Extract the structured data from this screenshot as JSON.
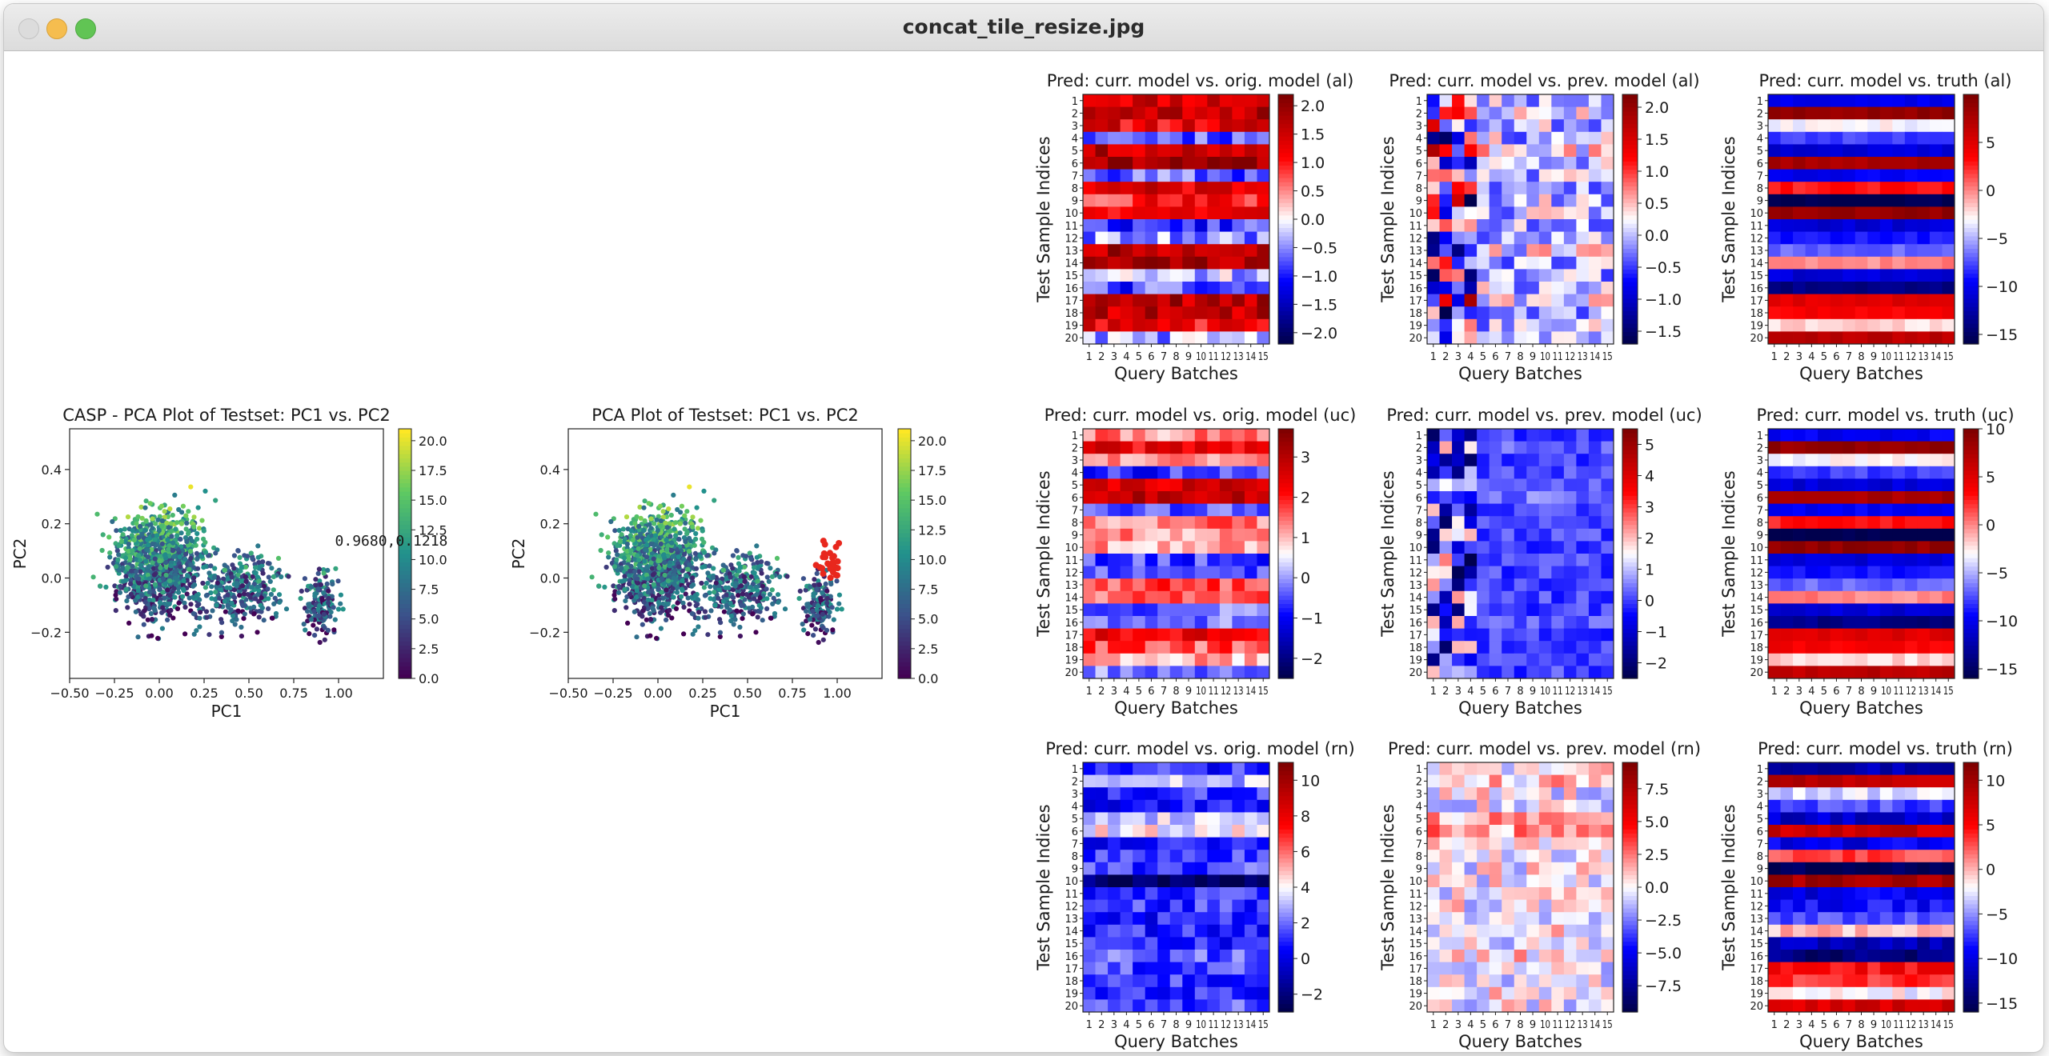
{
  "window": {
    "title": "concat_tile_resize.jpg"
  },
  "colors": {
    "window_bg": "#ffffff",
    "titlebar": "#e4e4e4",
    "close": "#dcdcdc",
    "minimize": "#f5bd4f",
    "maximize": "#61c454"
  },
  "chart_data": [
    {
      "type": "scatter",
      "title": "CASP - PCA Plot of Testset: PC1 vs. PC2",
      "xlabel": "PC1",
      "ylabel": "PC2",
      "xlim": [
        -0.5,
        1.25
      ],
      "ylim": [
        -0.37,
        0.55
      ],
      "xticks": [
        "−0.50",
        "−0.25",
        "0.00",
        "0.25",
        "0.50",
        "0.75",
        "1.00"
      ],
      "xtick_values": [
        -0.5,
        -0.25,
        0,
        0.25,
        0.5,
        0.75,
        1.0
      ],
      "yticks": [
        "−0.2",
        "0.0",
        "0.2",
        "0.4"
      ],
      "ytick_values": [
        -0.2,
        0,
        0.2,
        0.4
      ],
      "colorbar": {
        "cmap": "viridis",
        "vmin": 0,
        "vmax": 21,
        "ticks": [
          "0.0",
          "2.5",
          "5.0",
          "7.5",
          "10.0",
          "12.5",
          "15.0",
          "17.5",
          "20.0"
        ],
        "tick_values": [
          0,
          2.5,
          5,
          7.5,
          10,
          12.5,
          15,
          17.5,
          20
        ]
      },
      "annotation": "0.9680,0.1218",
      "highlight": false
    },
    {
      "type": "scatter",
      "title": "PCA Plot of Testset: PC1 vs. PC2",
      "xlabel": "PC1",
      "ylabel": "PC2",
      "xlim": [
        -0.5,
        1.25
      ],
      "ylim": [
        -0.37,
        0.55
      ],
      "xticks": [
        "−0.50",
        "−0.25",
        "0.00",
        "0.25",
        "0.50",
        "0.75",
        "1.00"
      ],
      "xtick_values": [
        -0.5,
        -0.25,
        0,
        0.25,
        0.5,
        0.75,
        1.0
      ],
      "yticks": [
        "−0.2",
        "0.0",
        "0.2",
        "0.4"
      ],
      "ytick_values": [
        -0.2,
        0,
        0.2,
        0.4
      ],
      "colorbar": {
        "cmap": "viridis",
        "vmin": 0,
        "vmax": 21,
        "ticks": [
          "0.0",
          "2.5",
          "5.0",
          "7.5",
          "10.0",
          "12.5",
          "15.0",
          "17.5",
          "20.0"
        ],
        "tick_values": [
          0,
          2.5,
          5,
          7.5,
          10,
          12.5,
          15,
          17.5,
          20
        ]
      },
      "highlight": true,
      "highlight_color": "#e8271d"
    },
    {
      "type": "heatmap",
      "title": "Pred: curr. model vs. orig. model (al)",
      "xlabel": "Query Batches",
      "ylabel": "Test Sample Indices",
      "rows": 20,
      "cols": 15,
      "row_labels": [
        "1",
        "2",
        "3",
        "4",
        "5",
        "6",
        "7",
        "8",
        "9",
        "10",
        "11",
        "12",
        "13",
        "14",
        "15",
        "16",
        "17",
        "18",
        "19",
        "20"
      ],
      "col_labels": [
        "1",
        "2",
        "3",
        "4",
        "5",
        "6",
        "7",
        "8",
        "9",
        "10",
        "11",
        "12",
        "13",
        "14",
        "15"
      ],
      "vmin": -2.2,
      "vmax": 2.2,
      "cb_ticks": [
        "2.0",
        "1.5",
        "1.0",
        "0.5",
        "0.0",
        "−0.5",
        "−1.0",
        "−1.5",
        "−2.0"
      ],
      "cb_tick_values": [
        2,
        1.5,
        1,
        0.5,
        0,
        -0.5,
        -1,
        -1.5,
        -2
      ],
      "row_means": [
        1.5,
        1.7,
        1.3,
        -0.6,
        1.6,
        2.0,
        -0.7,
        1.4,
        1.0,
        1.3,
        -0.9,
        -0.5,
        1.8,
        1.9,
        -0.3,
        -0.8,
        1.7,
        1.6,
        1.2,
        -0.4
      ],
      "noise": 0.5,
      "seed": 11
    },
    {
      "type": "heatmap",
      "title": "Pred: curr. model vs. prev. model (al)",
      "xlabel": "Query Batches",
      "ylabel": "Test Sample Indices",
      "rows": 20,
      "cols": 15,
      "row_labels": [
        "1",
        "2",
        "3",
        "4",
        "5",
        "6",
        "7",
        "8",
        "9",
        "10",
        "11",
        "12",
        "13",
        "14",
        "15",
        "16",
        "17",
        "18",
        "19",
        "20"
      ],
      "col_labels": [
        "1",
        "2",
        "3",
        "4",
        "5",
        "6",
        "7",
        "8",
        "9",
        "10",
        "11",
        "12",
        "13",
        "14",
        "15"
      ],
      "vmin": -1.7,
      "vmax": 2.2,
      "cb_ticks": [
        "2.0",
        "1.5",
        "1.0",
        "0.5",
        "0.0",
        "−0.5",
        "−1.0",
        "−1.5"
      ],
      "cb_tick_values": [
        2,
        1.5,
        1,
        0.5,
        0,
        -0.5,
        -1,
        -1.5
      ],
      "row_means": [
        0,
        0.2,
        0,
        0,
        0.3,
        0.1,
        0,
        0,
        0,
        0,
        0,
        0,
        0.2,
        0,
        0,
        0,
        0.2,
        0,
        0,
        0
      ],
      "noise": 0.55,
      "seed": 23,
      "early_boost": 1.5
    },
    {
      "type": "heatmap",
      "title": "Pred: curr. model vs. truth (al)",
      "xlabel": "Query Batches",
      "ylabel": "Test Sample Indices",
      "rows": 20,
      "cols": 15,
      "row_labels": [
        "1",
        "2",
        "3",
        "4",
        "5",
        "6",
        "7",
        "8",
        "9",
        "10",
        "11",
        "12",
        "13",
        "14",
        "15",
        "16",
        "17",
        "18",
        "19",
        "20"
      ],
      "col_labels": [
        "1",
        "2",
        "3",
        "4",
        "5",
        "6",
        "7",
        "8",
        "9",
        "10",
        "11",
        "12",
        "13",
        "14",
        "15"
      ],
      "vmin": -16,
      "vmax": 10,
      "cb_ticks": [
        "5",
        "0",
        "−5",
        "−10",
        "−15"
      ],
      "cb_tick_values": [
        5,
        0,
        -5,
        -10,
        -15
      ],
      "row_means": [
        -10,
        9,
        -3,
        -8,
        -11,
        8,
        -10,
        3,
        -16,
        9,
        -11,
        -9,
        -7,
        0,
        -11,
        -14,
        5,
        4,
        -2,
        7
      ],
      "noise": 0.8,
      "seed": 37
    },
    {
      "type": "heatmap",
      "title": "Pred: curr. model vs. orig. model (uc)",
      "xlabel": "Query Batches",
      "ylabel": "Test Sample Indices",
      "rows": 20,
      "cols": 15,
      "row_labels": [
        "1",
        "2",
        "3",
        "4",
        "5",
        "6",
        "7",
        "8",
        "9",
        "10",
        "11",
        "12",
        "13",
        "14",
        "15",
        "16",
        "17",
        "18",
        "19",
        "20"
      ],
      "col_labels": [
        "1",
        "2",
        "3",
        "4",
        "5",
        "6",
        "7",
        "8",
        "9",
        "10",
        "11",
        "12",
        "13",
        "14",
        "15"
      ],
      "vmin": -2.5,
      "vmax": 3.7,
      "cb_ticks": [
        "3",
        "2",
        "1",
        "0",
        "−1",
        "−2"
      ],
      "cb_tick_values": [
        3,
        2,
        1,
        0,
        -1,
        -2
      ],
      "row_means": [
        1.3,
        2.4,
        1.2,
        -0.7,
        2.6,
        3.0,
        -0.5,
        1.4,
        1.3,
        1.1,
        -0.6,
        -0.4,
        1.7,
        1.6,
        -0.3,
        -0.2,
        2.4,
        1.6,
        1.1,
        -0.2
      ],
      "noise": 0.55,
      "seed": 41
    },
    {
      "type": "heatmap",
      "title": "Pred: curr. model vs. prev. model (uc)",
      "xlabel": "Query Batches",
      "ylabel": "Test Sample Indices",
      "rows": 20,
      "cols": 15,
      "row_labels": [
        "1",
        "2",
        "3",
        "4",
        "5",
        "6",
        "7",
        "8",
        "9",
        "10",
        "11",
        "12",
        "13",
        "14",
        "15",
        "16",
        "17",
        "18",
        "19",
        "20"
      ],
      "col_labels": [
        "1",
        "2",
        "3",
        "4",
        "5",
        "6",
        "7",
        "8",
        "9",
        "10",
        "11",
        "12",
        "13",
        "14",
        "15"
      ],
      "vmin": -2.5,
      "vmax": 5.5,
      "cb_ticks": [
        "5",
        "4",
        "3",
        "2",
        "1",
        "0",
        "−1",
        "−2"
      ],
      "cb_tick_values": [
        5,
        4,
        3,
        2,
        1,
        0,
        -1,
        -2
      ],
      "row_means": [
        0,
        0.3,
        0,
        0,
        0.2,
        0.4,
        0,
        0,
        0,
        0,
        0,
        0,
        0,
        0,
        0,
        0.3,
        0,
        0,
        0,
        0
      ],
      "noise": 0.45,
      "seed": 53,
      "early_boost": 2.4
    },
    {
      "type": "heatmap",
      "title": "Pred: curr. model vs. truth (uc)",
      "xlabel": "Query Batches",
      "ylabel": "Test Sample Indices",
      "rows": 20,
      "cols": 15,
      "row_labels": [
        "1",
        "2",
        "3",
        "4",
        "5",
        "6",
        "7",
        "8",
        "9",
        "10",
        "11",
        "12",
        "13",
        "14",
        "15",
        "16",
        "17",
        "18",
        "19",
        "20"
      ],
      "col_labels": [
        "1",
        "2",
        "3",
        "4",
        "5",
        "6",
        "7",
        "8",
        "9",
        "10",
        "11",
        "12",
        "13",
        "14",
        "15"
      ],
      "vmin": -16,
      "vmax": 10,
      "cb_ticks": [
        "10",
        "5",
        "0",
        "−5",
        "−10",
        "−15"
      ],
      "cb_tick_values": [
        10,
        5,
        0,
        -5,
        -10,
        -15
      ],
      "row_means": [
        -10,
        9,
        -3,
        -8,
        -11,
        8,
        -10,
        3,
        -16,
        9,
        -11,
        -9,
        -7,
        0,
        -11,
        -14,
        5,
        4,
        -2,
        7
      ],
      "noise": 0.9,
      "seed": 61
    },
    {
      "type": "heatmap",
      "title": "Pred: curr. model vs. orig. model (rn)",
      "xlabel": "Query Batches",
      "ylabel": "Test Sample Indices",
      "rows": 20,
      "cols": 15,
      "row_labels": [
        "1",
        "2",
        "3",
        "4",
        "5",
        "6",
        "7",
        "8",
        "9",
        "10",
        "11",
        "12",
        "13",
        "14",
        "15",
        "16",
        "17",
        "18",
        "19",
        "20"
      ],
      "col_labels": [
        "1",
        "2",
        "3",
        "4",
        "5",
        "6",
        "7",
        "8",
        "9",
        "10",
        "11",
        "12",
        "13",
        "14",
        "15"
      ],
      "vmin": -3,
      "vmax": 11,
      "cb_ticks": [
        "10",
        "8",
        "6",
        "4",
        "2",
        "0",
        "−2"
      ],
      "cb_tick_values": [
        10,
        8,
        6,
        4,
        2,
        0,
        -2
      ],
      "row_means": [
        1,
        3,
        1,
        0.5,
        3.5,
        4,
        0.8,
        1.2,
        1.5,
        -2.5,
        1,
        1.2,
        0.8,
        1,
        1,
        1.8,
        1.4,
        1.2,
        1.2,
        1.5
      ],
      "noise": 1.2,
      "seed": 71
    },
    {
      "type": "heatmap",
      "title": "Pred: curr. model vs. prev. model (rn)",
      "xlabel": "Query Batches",
      "ylabel": "Test Sample Indices",
      "rows": 20,
      "cols": 15,
      "row_labels": [
        "1",
        "2",
        "3",
        "4",
        "5",
        "6",
        "7",
        "8",
        "9",
        "10",
        "11",
        "12",
        "13",
        "14",
        "15",
        "16",
        "17",
        "18",
        "19",
        "20"
      ],
      "col_labels": [
        "1",
        "2",
        "3",
        "4",
        "5",
        "6",
        "7",
        "8",
        "9",
        "10",
        "11",
        "12",
        "13",
        "14",
        "15"
      ],
      "vmin": -9.5,
      "vmax": 9.5,
      "cb_ticks": [
        "7.5",
        "5.0",
        "2.5",
        "0.0",
        "−2.5",
        "−5.0",
        "−7.5"
      ],
      "cb_tick_values": [
        7.5,
        5,
        2.5,
        0,
        -2.5,
        -5,
        -7.5
      ],
      "row_means": [
        0,
        1,
        0,
        0,
        1.5,
        2,
        0,
        0,
        0,
        0,
        0,
        0,
        0,
        0,
        0,
        0.5,
        0,
        0,
        0,
        0
      ],
      "noise": 2.2,
      "seed": 83
    },
    {
      "type": "heatmap",
      "title": "Pred: curr. model vs. truth (rn)",
      "xlabel": "Query Batches",
      "ylabel": "Test Sample Indices",
      "rows": 20,
      "cols": 15,
      "row_labels": [
        "1",
        "2",
        "3",
        "4",
        "5",
        "6",
        "7",
        "8",
        "9",
        "10",
        "11",
        "12",
        "13",
        "14",
        "15",
        "16",
        "17",
        "18",
        "19",
        "20"
      ],
      "col_labels": [
        "1",
        "2",
        "3",
        "4",
        "5",
        "6",
        "7",
        "8",
        "9",
        "10",
        "11",
        "12",
        "13",
        "14",
        "15"
      ],
      "vmin": -16,
      "vmax": 12,
      "cb_ticks": [
        "10",
        "5",
        "0",
        "−5",
        "−10",
        "−15"
      ],
      "cb_tick_values": [
        10,
        5,
        0,
        -5,
        -10,
        -15
      ],
      "row_means": [
        -12,
        9,
        -3,
        -7,
        -11,
        8,
        -10,
        3,
        -16,
        10,
        -10,
        -9,
        -7,
        0,
        -12,
        -14,
        5,
        4,
        -2,
        7
      ],
      "noise": 1.6,
      "seed": 97
    }
  ]
}
